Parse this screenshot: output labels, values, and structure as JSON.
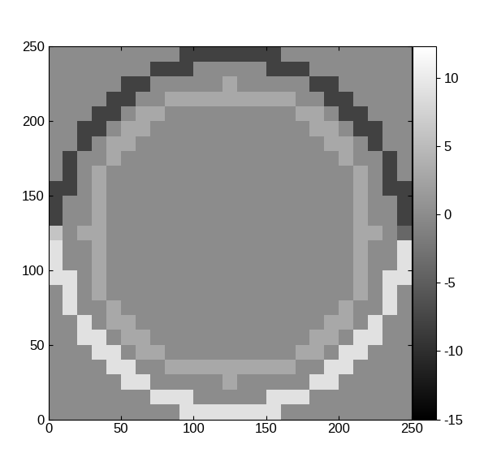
{
  "chart_data": {
    "type": "heatmap",
    "xlim": [
      0,
      250
    ],
    "ylim": [
      0,
      250
    ],
    "xticks": [
      0,
      50,
      100,
      150,
      200,
      250
    ],
    "yticks": [
      0,
      50,
      100,
      150,
      200,
      250
    ],
    "xbins": [
      0,
      10,
      20,
      30,
      40,
      50,
      60,
      70,
      80,
      90,
      100,
      110,
      120,
      130,
      140,
      150,
      160,
      170,
      180,
      190,
      200,
      210,
      220,
      230,
      240,
      250
    ],
    "ybins": [
      0,
      10,
      20,
      30,
      40,
      50,
      60,
      70,
      80,
      90,
      100,
      110,
      120,
      130,
      140,
      150,
      160,
      170,
      180,
      190,
      200,
      210,
      220,
      230,
      240,
      250
    ],
    "zlim": [
      -15,
      12.3
    ],
    "zticks": [
      -15,
      -10,
      -5,
      0,
      5,
      10
    ],
    "color": "gray",
    "cells": [
      [
        0,
        0,
        0,
        0,
        0,
        0,
        0,
        0,
        0,
        9,
        9,
        9,
        9,
        9,
        9,
        9,
        0,
        0,
        0,
        0,
        0,
        0,
        0,
        0,
        0
      ],
      [
        0,
        0,
        0,
        0,
        0,
        0,
        0,
        9,
        9,
        9,
        0,
        0,
        0,
        0,
        0,
        9,
        9,
        9,
        0,
        0,
        0,
        0,
        0,
        0,
        0
      ],
      [
        0,
        0,
        0,
        0,
        0,
        9,
        9,
        0,
        0,
        0,
        0,
        0,
        3,
        0,
        0,
        0,
        0,
        0,
        9,
        9,
        0,
        0,
        0,
        0,
        0
      ],
      [
        0,
        0,
        0,
        0,
        9,
        9,
        0,
        0,
        3,
        3,
        3,
        3,
        3,
        3,
        3,
        3,
        3,
        0,
        0,
        9,
        9,
        0,
        0,
        0,
        0
      ],
      [
        0,
        0,
        0,
        9,
        9,
        0,
        3,
        3,
        0,
        0,
        0,
        0,
        0,
        0,
        0,
        0,
        0,
        3,
        3,
        0,
        9,
        9,
        0,
        0,
        0
      ],
      [
        0,
        0,
        9,
        9,
        0,
        3,
        3,
        0,
        0,
        0,
        0,
        0,
        0,
        0,
        0,
        0,
        0,
        0,
        3,
        3,
        0,
        9,
        9,
        0,
        0
      ],
      [
        0,
        0,
        9,
        0,
        3,
        3,
        0,
        0,
        0,
        0,
        0,
        0,
        0,
        0,
        0,
        0,
        0,
        0,
        0,
        3,
        3,
        0,
        9,
        0,
        0
      ],
      [
        0,
        9,
        0,
        0,
        3,
        0,
        0,
        0,
        0,
        0,
        0,
        0,
        0,
        0,
        0,
        0,
        0,
        0,
        0,
        0,
        3,
        0,
        0,
        9,
        0
      ],
      [
        0,
        9,
        0,
        3,
        0,
        0,
        0,
        0,
        0,
        0,
        0,
        0,
        0,
        0,
        0,
        0,
        0,
        0,
        0,
        0,
        0,
        3,
        0,
        9,
        0
      ],
      [
        9,
        9,
        0,
        3,
        0,
        0,
        0,
        0,
        0,
        0,
        0,
        0,
        0,
        0,
        0,
        0,
        0,
        0,
        0,
        0,
        0,
        3,
        0,
        9,
        9
      ],
      [
        9,
        0,
        0,
        3,
        0,
        0,
        0,
        0,
        0,
        0,
        0,
        0,
        0,
        0,
        0,
        0,
        0,
        0,
        0,
        0,
        0,
        3,
        0,
        0,
        9
      ],
      [
        9,
        0,
        0,
        3,
        0,
        0,
        0,
        0,
        0,
        0,
        0,
        0,
        0,
        0,
        0,
        0,
        0,
        0,
        0,
        0,
        0,
        3,
        0,
        0,
        9
      ],
      [
        6,
        0,
        3,
        3,
        0,
        0,
        0,
        0,
        0,
        0,
        0,
        0,
        0,
        0,
        0,
        0,
        0,
        0,
        0,
        0,
        0,
        3,
        3,
        0,
        -4
      ],
      [
        -8,
        0,
        0,
        3,
        0,
        0,
        0,
        0,
        0,
        0,
        0,
        0,
        0,
        0,
        0,
        0,
        0,
        0,
        0,
        0,
        0,
        3,
        0,
        0,
        -8
      ],
      [
        -8,
        0,
        0,
        3,
        0,
        0,
        0,
        0,
        0,
        0,
        0,
        0,
        0,
        0,
        0,
        0,
        0,
        0,
        0,
        0,
        0,
        3,
        0,
        0,
        -8
      ],
      [
        -8,
        -8,
        0,
        3,
        0,
        0,
        0,
        0,
        0,
        0,
        0,
        0,
        0,
        0,
        0,
        0,
        0,
        0,
        0,
        0,
        0,
        3,
        0,
        -8,
        -8
      ],
      [
        0,
        -8,
        0,
        3,
        0,
        0,
        0,
        0,
        0,
        0,
        0,
        0,
        0,
        0,
        0,
        0,
        0,
        0,
        0,
        0,
        0,
        3,
        0,
        -8,
        0
      ],
      [
        0,
        -8,
        0,
        0,
        3,
        0,
        0,
        0,
        0,
        0,
        0,
        0,
        0,
        0,
        0,
        0,
        0,
        0,
        0,
        0,
        3,
        0,
        0,
        -8,
        0
      ],
      [
        0,
        0,
        -8,
        0,
        3,
        3,
        0,
        0,
        0,
        0,
        0,
        0,
        0,
        0,
        0,
        0,
        0,
        0,
        0,
        3,
        3,
        0,
        -8,
        0,
        0
      ],
      [
        0,
        0,
        -8,
        -8,
        0,
        3,
        3,
        0,
        0,
        0,
        0,
        0,
        0,
        0,
        0,
        0,
        0,
        0,
        3,
        3,
        0,
        -8,
        -8,
        0,
        0
      ],
      [
        0,
        0,
        0,
        -8,
        -8,
        0,
        3,
        3,
        0,
        0,
        0,
        0,
        0,
        0,
        0,
        0,
        0,
        3,
        3,
        0,
        -8,
        -8,
        0,
        0,
        0
      ],
      [
        0,
        0,
        0,
        0,
        -8,
        -8,
        0,
        0,
        3,
        3,
        3,
        3,
        3,
        3,
        3,
        3,
        3,
        0,
        0,
        -8,
        -8,
        0,
        0,
        0,
        0
      ],
      [
        0,
        0,
        0,
        0,
        0,
        -8,
        -8,
        0,
        0,
        0,
        0,
        0,
        3,
        0,
        0,
        0,
        0,
        0,
        -8,
        -8,
        0,
        0,
        0,
        0,
        0
      ],
      [
        0,
        0,
        0,
        0,
        0,
        0,
        0,
        -8,
        -8,
        -8,
        0,
        0,
        0,
        0,
        0,
        -8,
        -8,
        -8,
        0,
        0,
        0,
        0,
        0,
        0,
        0
      ],
      [
        0,
        0,
        0,
        0,
        0,
        0,
        0,
        0,
        0,
        -8,
        -8,
        -8,
        -8,
        -8,
        -8,
        -8,
        0,
        0,
        0,
        0,
        0,
        0,
        0,
        0,
        0
      ]
    ]
  }
}
